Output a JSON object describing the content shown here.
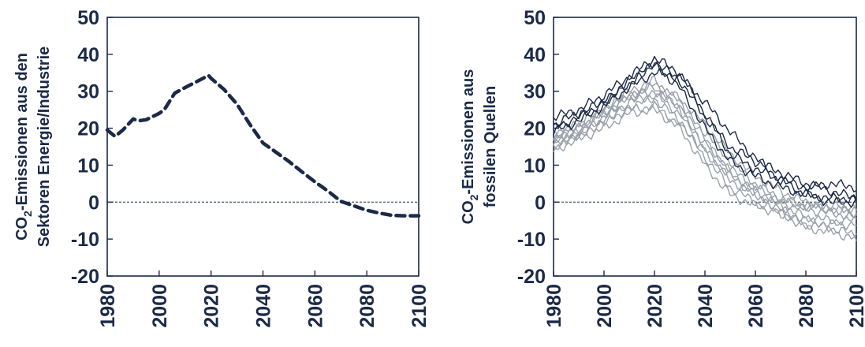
{
  "colors": {
    "ink": "#1b2a47",
    "dark_series": "#1b2a47",
    "light_series": "#9aa1ab"
  },
  "chart_data": [
    {
      "type": "line",
      "title": "",
      "ylabel_lines": [
        "CO2-Emissionen aus den",
        "Sektoren Energie/Industrie"
      ],
      "ylabel_parts": {
        "pre": "CO",
        "sub": "2",
        "post": "-Emissionen aus den",
        "line2": "Sektoren Energie/Industrie"
      },
      "xlabel": "",
      "xlim": [
        1980,
        2100
      ],
      "ylim": [
        -20,
        50
      ],
      "xticks": [
        "1980",
        "2000",
        "2020",
        "2040",
        "2060",
        "2080",
        "2100"
      ],
      "yticks": [
        "50",
        "40",
        "30",
        "20",
        "10",
        "0",
        "-10",
        "-20"
      ],
      "zero_line": true,
      "series": [
        {
          "style": "dashed-thick",
          "x": [
            1980,
            1983,
            1986,
            1990,
            1992,
            1995,
            2000,
            2002,
            2006,
            2010,
            2015,
            2019,
            2020,
            2025,
            2030,
            2035,
            2040,
            2045,
            2050,
            2055,
            2060,
            2065,
            2070,
            2075,
            2080,
            2085,
            2090,
            2095,
            2100
          ],
          "y": [
            19.5,
            17.8,
            19.5,
            22.5,
            22,
            22.3,
            24,
            25,
            29.5,
            31,
            32.8,
            34.3,
            33.5,
            30.5,
            26.5,
            21,
            16,
            13.5,
            11,
            8.2,
            5.5,
            3,
            0.2,
            -1,
            -2.2,
            -3,
            -3.6,
            -3.7,
            -3.7
          ]
        }
      ]
    },
    {
      "type": "line",
      "title": "",
      "ylabel_lines": [
        "CO2-Emissionen aus",
        "fossilen Quellen"
      ],
      "ylabel_parts": {
        "pre": "CO",
        "sub": "2",
        "post": "-Emissionen aus",
        "line2": "fossilen Quellen"
      },
      "xlabel": "",
      "xlim": [
        1980,
        2100
      ],
      "ylim": [
        -20,
        50
      ],
      "xticks": [
        "1980",
        "2000",
        "2020",
        "2040",
        "2060",
        "2080",
        "2100"
      ],
      "yticks": [
        "50",
        "40",
        "30",
        "20",
        "10",
        "0",
        "-10",
        "-20"
      ],
      "zero_line": true,
      "series": [
        {
          "style": "dark",
          "x": [
            1980,
            1990,
            2000,
            2010,
            2020,
            2030,
            2040,
            2050,
            2060,
            2070,
            2080,
            2090,
            2100
          ],
          "y": [
            21,
            24,
            27,
            32,
            38,
            33,
            23,
            15,
            11,
            8,
            5,
            3,
            1
          ]
        },
        {
          "style": "dark",
          "x": [
            1980,
            1990,
            2000,
            2010,
            2020,
            2030,
            2040,
            2050,
            2060,
            2070,
            2080,
            2090,
            2100
          ],
          "y": [
            23,
            25,
            29,
            34,
            39,
            35,
            24,
            13,
            9,
            6,
            4,
            5,
            4
          ]
        },
        {
          "style": "dark",
          "x": [
            1980,
            1990,
            2000,
            2010,
            2020,
            2030,
            2040,
            2050,
            2060,
            2070,
            2080,
            2090,
            2100
          ],
          "y": [
            19,
            22,
            26,
            31,
            35,
            34,
            27,
            19,
            12,
            6,
            2,
            0,
            0
          ]
        },
        {
          "style": "dark",
          "x": [
            1980,
            1990,
            2000,
            2010,
            2020,
            2030,
            2040,
            2050,
            2060,
            2070,
            2080,
            2090,
            2100
          ],
          "y": [
            20,
            23,
            27,
            33,
            37,
            31,
            20,
            11,
            7,
            4,
            2,
            1,
            1
          ]
        },
        {
          "style": "light",
          "x": [
            1980,
            1990,
            2000,
            2010,
            2020,
            2030,
            2040,
            2050,
            2060,
            2070,
            2080,
            2090,
            2100
          ],
          "y": [
            17,
            20,
            25,
            30,
            33,
            27,
            17,
            8,
            3,
            0,
            -2,
            -3,
            -4
          ]
        },
        {
          "style": "light",
          "x": [
            1980,
            1990,
            2000,
            2010,
            2020,
            2030,
            2040,
            2050,
            2060,
            2070,
            2080,
            2090,
            2100
          ],
          "y": [
            16,
            19,
            24,
            29,
            31,
            25,
            14,
            6,
            2,
            -1,
            -4,
            -5,
            -5
          ]
        },
        {
          "style": "light",
          "x": [
            1980,
            1990,
            2000,
            2010,
            2020,
            2030,
            2040,
            2050,
            2060,
            2070,
            2080,
            2090,
            2100
          ],
          "y": [
            15,
            18,
            22,
            26,
            28,
            22,
            12,
            4,
            0,
            -3,
            -6,
            -7,
            -9
          ]
        },
        {
          "style": "light",
          "x": [
            1980,
            1990,
            2000,
            2010,
            2020,
            2030,
            2040,
            2050,
            2060,
            2070,
            2080,
            2090,
            2100
          ],
          "y": [
            18,
            21,
            25,
            29,
            30,
            26,
            19,
            11,
            5,
            1,
            -1,
            -2,
            -3
          ]
        },
        {
          "style": "light",
          "x": [
            1980,
            1990,
            2000,
            2010,
            2020,
            2030,
            2040,
            2050,
            2060,
            2070,
            2080,
            2090,
            2100
          ],
          "y": [
            17,
            19,
            23,
            27,
            29,
            24,
            16,
            9,
            4,
            0,
            -1,
            -1,
            -2
          ]
        },
        {
          "style": "light",
          "x": [
            1980,
            1990,
            2000,
            2010,
            2020,
            2030,
            2040,
            2050,
            2060,
            2070,
            2080,
            2090,
            2100
          ],
          "y": [
            16,
            18,
            22,
            25,
            26,
            21,
            14,
            7,
            2,
            -2,
            -5,
            -6,
            -6
          ]
        },
        {
          "style": "light",
          "x": [
            1980,
            1990,
            2000,
            2010,
            2020,
            2030,
            2040,
            2050,
            2060,
            2070,
            2080,
            2090,
            2100
          ],
          "y": [
            14,
            17,
            20,
            24,
            25,
            20,
            10,
            2,
            -1,
            -3,
            -7,
            -8,
            -10
          ]
        },
        {
          "style": "light",
          "x": [
            1980,
            1990,
            2000,
            2010,
            2020,
            2030,
            2040,
            2050,
            2060,
            2070,
            2080,
            2090,
            2100
          ],
          "y": [
            18,
            21,
            24,
            28,
            32,
            28,
            21,
            13,
            7,
            3,
            0,
            -2,
            -2
          ]
        }
      ]
    }
  ]
}
